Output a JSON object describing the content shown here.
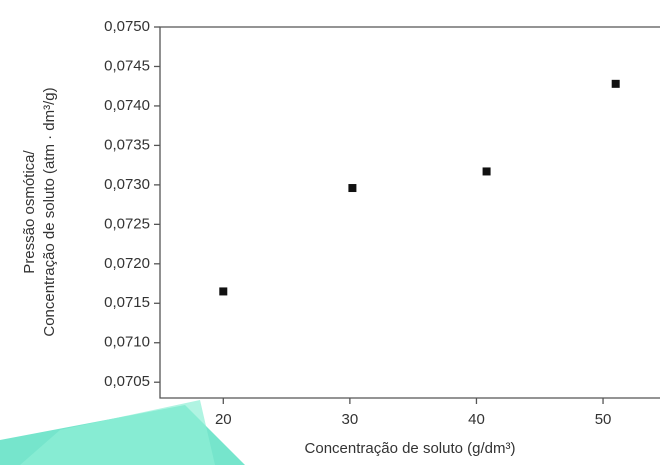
{
  "chart_data": {
    "type": "scatter",
    "xlabel": "Concentração de soluto (g/dm³)",
    "ylabel": [
      "Pressão osmótica/",
      "Concentração de soluto (atm · dm³/g)"
    ],
    "x": [
      20,
      30.2,
      40.8,
      51
    ],
    "values": [
      0.07165,
      0.07296,
      0.07317,
      0.07428
    ],
    "color": "#111111",
    "xlim": [
      15,
      54.5
    ],
    "xticks": [
      20,
      30,
      40,
      50
    ],
    "ylim": [
      0.0703,
      0.075
    ],
    "yticks": [
      {
        "value": 0.0705,
        "label": "0,0705"
      },
      {
        "value": 0.071,
        "label": "0,0710"
      },
      {
        "value": 0.0715,
        "label": "0,0715"
      },
      {
        "value": 0.072,
        "label": "0,0720"
      },
      {
        "value": 0.0725,
        "label": "0,0725"
      },
      {
        "value": 0.073,
        "label": "0,0730"
      },
      {
        "value": 0.0735,
        "label": "0,0735"
      },
      {
        "value": 0.074,
        "label": "0,0740"
      },
      {
        "value": 0.0745,
        "label": "0,0745"
      },
      {
        "value": 0.075,
        "label": "0,0750"
      }
    ]
  }
}
